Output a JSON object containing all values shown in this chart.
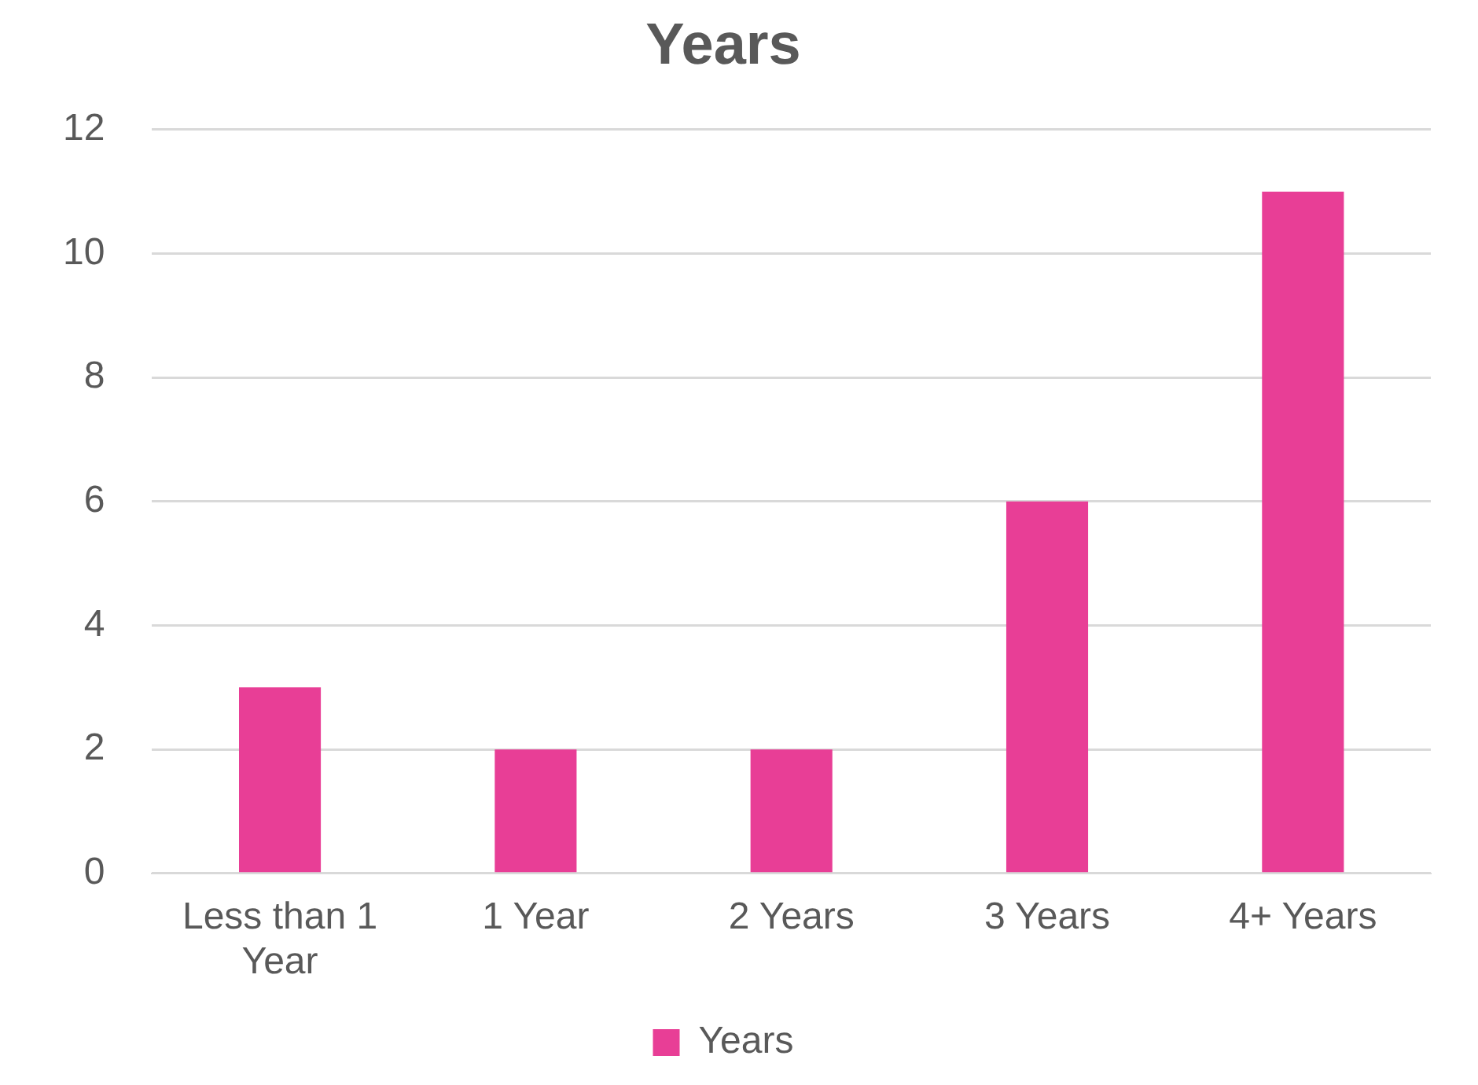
{
  "chart_data": {
    "type": "bar",
    "title": "Years",
    "categories": [
      "Less than 1 Year",
      "1 Year",
      "2 Years",
      "3 Years",
      "4+ Years"
    ],
    "series": [
      {
        "name": "Years",
        "color": "#e83e96",
        "values": [
          3,
          2,
          2,
          6,
          11
        ]
      }
    ],
    "ylim": [
      0,
      12
    ],
    "yticks": [
      0,
      2,
      4,
      6,
      8,
      10,
      12
    ],
    "grid": "y",
    "legend": "bottom"
  }
}
